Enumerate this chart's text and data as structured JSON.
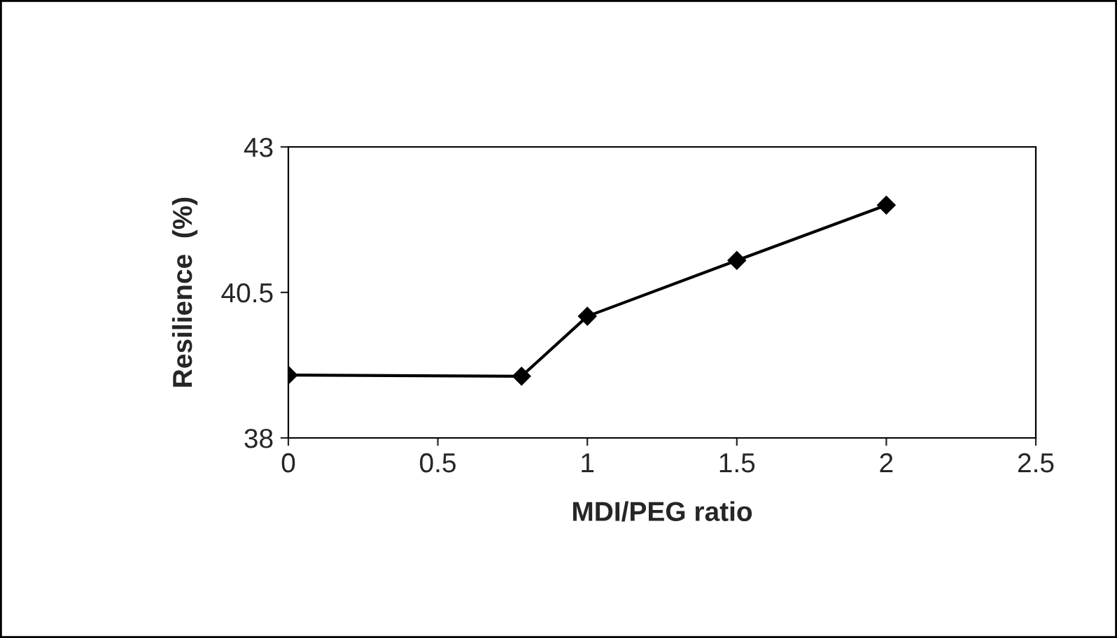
{
  "chart_data": {
    "type": "line",
    "xlabel": "MDI/PEG ratio",
    "ylabel": "Resilience  (%)",
    "series": [
      {
        "color": "#000000",
        "x": [
          0,
          0.78,
          1,
          1.5,
          2
        ],
        "values": [
          39.08,
          39.06,
          40.09,
          41.05,
          42.0
        ]
      }
    ],
    "xlim": [
      0,
      2.5
    ],
    "xticks": [
      0,
      0.5,
      1,
      1.5,
      2,
      2.5
    ],
    "ylim": [
      38,
      43
    ],
    "yticks": [
      38,
      40.5,
      43
    ],
    "marker": "diamond",
    "line_style": "solid",
    "grid": false,
    "legend": false
  }
}
